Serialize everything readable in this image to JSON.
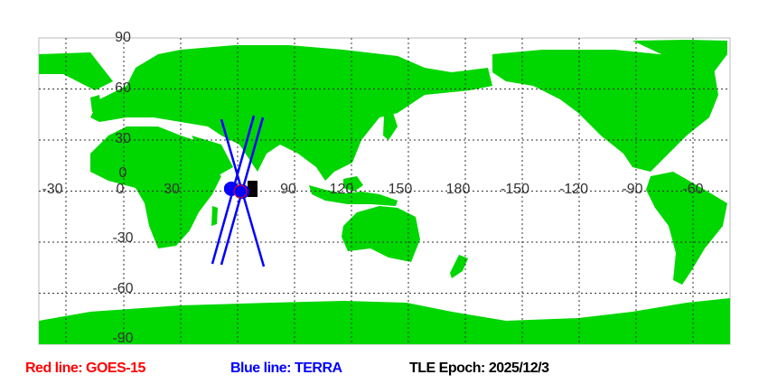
{
  "map": {
    "lon_labels": [
      "-30",
      "0",
      "30",
      "60",
      "90",
      "120",
      "150",
      "180",
      "-150",
      "-120",
      "-90",
      "-60"
    ],
    "lat_labels": [
      "90",
      "60",
      "30",
      "0",
      "-30",
      "-60",
      "-90"
    ],
    "colors": {
      "land": "#00d600",
      "ocean": "#ffffff",
      "grid": "#333333",
      "track": "#0000ff",
      "marker_goes": "#ff0000",
      "marker_terra": "#0000ff"
    }
  },
  "legend": {
    "red": {
      "text": "Red line: GOES-15",
      "color": "#ff0000"
    },
    "blue": {
      "text": "Blue line: TERRA",
      "color": "#0000ff"
    },
    "epoch": {
      "text": "TLE Epoch: 2025/12/3",
      "color": "#000000"
    }
  }
}
